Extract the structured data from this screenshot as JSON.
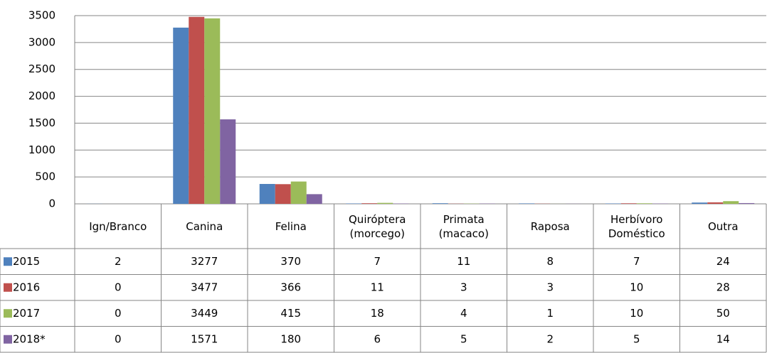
{
  "chart_data": {
    "type": "bar",
    "categories": [
      "Ign/Branco",
      "Canina",
      "Felina",
      "Quiróptera (morcego)",
      "Primata (macaco)",
      "Raposa",
      "Herbívoro Doméstico",
      "Outra"
    ],
    "series": [
      {
        "name": "2015",
        "color": "#4f81bd",
        "values": [
          2,
          3277,
          370,
          7,
          11,
          8,
          7,
          24
        ]
      },
      {
        "name": "2016",
        "color": "#c0504d",
        "values": [
          0,
          3477,
          366,
          11,
          3,
          3,
          10,
          28
        ]
      },
      {
        "name": "2017",
        "color": "#9bbb59",
        "values": [
          0,
          3449,
          415,
          18,
          4,
          1,
          10,
          50
        ]
      },
      {
        "name": "2018*",
        "color": "#8064a2",
        "values": [
          0,
          1571,
          180,
          6,
          5,
          2,
          5,
          14
        ]
      }
    ],
    "ylim": [
      0,
      3500
    ],
    "yticks": [
      0,
      500,
      1000,
      1500,
      2000,
      2500,
      3000,
      3500
    ],
    "grid": true
  }
}
